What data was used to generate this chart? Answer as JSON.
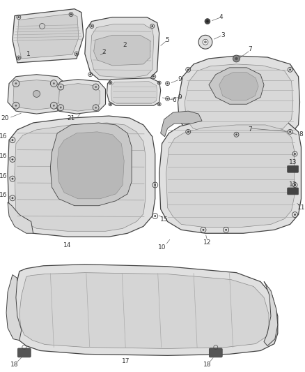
{
  "background_color": "#ffffff",
  "figure_width": 4.38,
  "figure_height": 5.33,
  "dpi": 100,
  "line_color": "#444444",
  "inner_color": "#888888",
  "part_face": "#e8e8e8",
  "part_face2": "#d8d8d8",
  "part_face3": "#f0f0f0",
  "rib_color": "#aaaaaa",
  "label_color": "#333333",
  "label_fontsize": 6.5,
  "leader_color": "#666666"
}
